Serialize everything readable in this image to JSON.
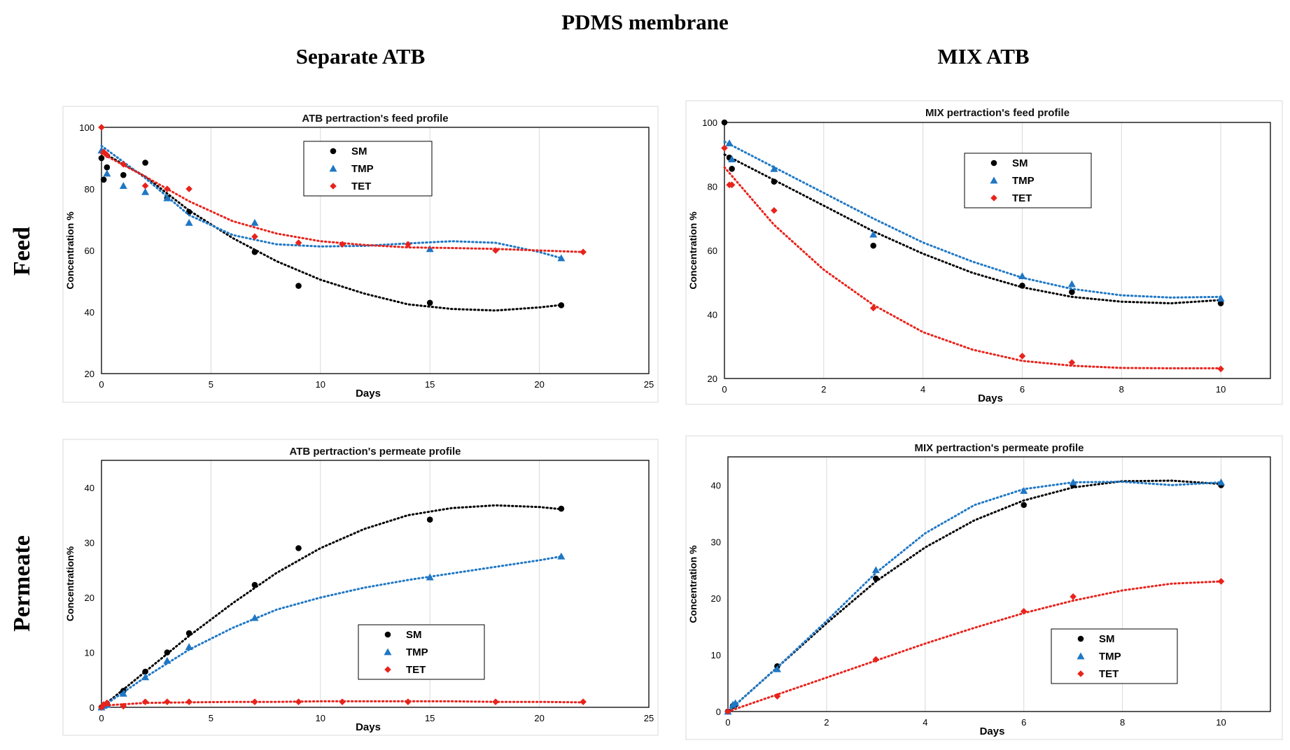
{
  "page": {
    "title": "PDMS membrane",
    "col_left": "Separate ATB",
    "col_right": "MIX ATB",
    "row_feed": "Feed",
    "row_permeate": "Permeate"
  },
  "chart_data": [
    {
      "type": "scatter",
      "title": "ATB pertraction's feed profile",
      "xlabel": "Days",
      "ylabel": "Concentration %",
      "xlim": [
        0,
        25
      ],
      "ylim": [
        20,
        100
      ],
      "xticks": [
        0,
        5,
        10,
        15,
        20,
        25
      ],
      "yticks": [
        20,
        40,
        60,
        80,
        100
      ],
      "grid": "vertical",
      "legend": "top-center",
      "series": [
        {
          "name": "SM",
          "color": "#000000",
          "marker": "circle",
          "x": [
            0,
            0.1,
            0.25,
            1,
            2,
            3,
            4,
            7,
            9,
            15,
            21
          ],
          "y": [
            90,
            83,
            87,
            84.5,
            88.5,
            77,
            72.5,
            59.5,
            48.5,
            43,
            42.2
          ],
          "trend": [
            [
              0,
              92
            ],
            [
              2,
              84
            ],
            [
              4,
              73
            ],
            [
              6,
              64
            ],
            [
              8,
              56.5
            ],
            [
              10,
              50.5
            ],
            [
              12,
              46
            ],
            [
              14,
              42.5
            ],
            [
              16,
              41
            ],
            [
              18,
              40.5
            ],
            [
              20,
              41.5
            ],
            [
              21,
              42.3
            ]
          ]
        },
        {
          "name": "TMP",
          "color": "#1f77c4",
          "marker": "triangle",
          "x": [
            0,
            0.25,
            1,
            2,
            3,
            4,
            7,
            15,
            21
          ],
          "y": [
            92.5,
            85,
            81,
            79,
            77,
            69,
            69,
            60.5,
            57.5
          ],
          "trend": [
            [
              0,
              94
            ],
            [
              2,
              83.5
            ],
            [
              4,
              71.5
            ],
            [
              6,
              65
            ],
            [
              8,
              62
            ],
            [
              10,
              61.3
            ],
            [
              12,
              61.5
            ],
            [
              14,
              62.3
            ],
            [
              16,
              63
            ],
            [
              18,
              62.5
            ],
            [
              20,
              59.5
            ],
            [
              21,
              57.5
            ]
          ]
        },
        {
          "name": "TET",
          "color": "#e8231c",
          "marker": "diamond",
          "x": [
            0,
            0.1,
            0.25,
            1,
            2,
            3,
            4,
            7,
            9,
            11,
            14,
            18,
            22
          ],
          "y": [
            100,
            92,
            91,
            88,
            81,
            80,
            80,
            64.5,
            62.5,
            62,
            62,
            60,
            59.5
          ],
          "trend": [
            [
              0,
              91.5
            ],
            [
              2,
              84
            ],
            [
              4,
              76
            ],
            [
              6,
              69.5
            ],
            [
              8,
              65.5
            ],
            [
              10,
              63
            ],
            [
              12,
              61.8
            ],
            [
              14,
              61
            ],
            [
              16,
              60.8
            ],
            [
              18,
              60.5
            ],
            [
              20,
              60
            ],
            [
              22,
              59.5
            ]
          ]
        }
      ]
    },
    {
      "type": "scatter",
      "title": "MIX pertraction's feed profile",
      "xlabel": "Days",
      "ylabel": "Concentration %",
      "xlim": [
        0,
        11
      ],
      "ylim": [
        20,
        100
      ],
      "xticks": [
        0,
        2,
        4,
        6,
        8,
        10
      ],
      "yticks": [
        20,
        40,
        60,
        80,
        100
      ],
      "grid": "vertical",
      "legend": "top-center",
      "series": [
        {
          "name": "SM",
          "color": "#000000",
          "marker": "circle",
          "x": [
            0,
            0.1,
            0.15,
            1,
            3,
            6,
            7,
            10
          ],
          "y": [
            100,
            89,
            85.5,
            81.5,
            61.5,
            49,
            47,
            43.5
          ],
          "trend": [
            [
              0,
              90
            ],
            [
              1,
              82
            ],
            [
              2,
              74
            ],
            [
              3,
              66
            ],
            [
              4,
              59
            ],
            [
              5,
              53
            ],
            [
              6,
              48.5
            ],
            [
              7,
              45.5
            ],
            [
              8,
              44
            ],
            [
              9,
              43.5
            ],
            [
              10,
              44.5
            ]
          ]
        },
        {
          "name": "TMP",
          "color": "#1f77c4",
          "marker": "triangle",
          "x": [
            0.1,
            0.15,
            1,
            3,
            6,
            7,
            10
          ],
          "y": [
            93.5,
            88.5,
            85.5,
            65,
            52,
            49.5,
            45
          ],
          "trend": [
            [
              0,
              94
            ],
            [
              1,
              86
            ],
            [
              2,
              78
            ],
            [
              3,
              70
            ],
            [
              4,
              62.5
            ],
            [
              5,
              56.5
            ],
            [
              6,
              51.5
            ],
            [
              7,
              48
            ],
            [
              8,
              46
            ],
            [
              9,
              45.3
            ],
            [
              10,
              45.5
            ]
          ]
        },
        {
          "name": "TET",
          "color": "#e8231c",
          "marker": "diamond",
          "x": [
            0,
            0.1,
            0.15,
            1,
            3,
            6,
            7,
            10
          ],
          "y": [
            92,
            80.5,
            80.5,
            72.5,
            42,
            27,
            25,
            23
          ],
          "trend": [
            [
              0,
              86
            ],
            [
              1,
              68
            ],
            [
              2,
              54
            ],
            [
              3,
              43
            ],
            [
              4,
              34.5
            ],
            [
              5,
              29
            ],
            [
              6,
              25.5
            ],
            [
              7,
              24
            ],
            [
              8,
              23.3
            ],
            [
              9,
              23.2
            ],
            [
              10,
              23.2
            ]
          ]
        }
      ]
    },
    {
      "type": "scatter",
      "title": "ATB pertraction's permeate profile",
      "xlabel": "Days",
      "ylabel": "Concentration%",
      "xlim": [
        0,
        25
      ],
      "ylim": [
        0,
        45
      ],
      "xticks": [
        0,
        5,
        10,
        15,
        20,
        25
      ],
      "yticks": [
        0,
        10,
        20,
        30,
        40
      ],
      "grid": "vertical",
      "legend": "bottom-center",
      "series": [
        {
          "name": "SM",
          "color": "#000000",
          "marker": "circle",
          "x": [
            0,
            0.1,
            0.25,
            1,
            2,
            3,
            4,
            7,
            9,
            15,
            21
          ],
          "y": [
            0,
            0.3,
            0.6,
            3,
            6.5,
            10,
            13.5,
            22.3,
            29,
            34.2,
            36.2
          ],
          "trend": [
            [
              0,
              0
            ],
            [
              2,
              6.5
            ],
            [
              4,
              13
            ],
            [
              6,
              19
            ],
            [
              8,
              24.5
            ],
            [
              10,
              29
            ],
            [
              12,
              32.5
            ],
            [
              14,
              35
            ],
            [
              16,
              36.3
            ],
            [
              18,
              36.8
            ],
            [
              20,
              36.5
            ],
            [
              21,
              36.1
            ]
          ]
        },
        {
          "name": "TMP",
          "color": "#1f77c4",
          "marker": "triangle",
          "x": [
            0,
            0.1,
            0.25,
            1,
            2,
            3,
            4,
            7,
            15,
            21
          ],
          "y": [
            0,
            0.3,
            0.5,
            2.5,
            5.5,
            8.5,
            11,
            16.3,
            23.7,
            27.5
          ],
          "trend": [
            [
              0,
              0
            ],
            [
              2,
              5.5
            ],
            [
              4,
              10.5
            ],
            [
              6,
              14.5
            ],
            [
              8,
              17.8
            ],
            [
              10,
              20
            ],
            [
              12,
              21.8
            ],
            [
              14,
              23.2
            ],
            [
              16,
              24.4
            ],
            [
              18,
              25.6
            ],
            [
              20,
              26.8
            ],
            [
              21,
              27.5
            ]
          ]
        },
        {
          "name": "TET",
          "color": "#e8231c",
          "marker": "diamond",
          "x": [
            0,
            0.1,
            0.25,
            1,
            2,
            3,
            4,
            7,
            9,
            11,
            14,
            18,
            22
          ],
          "y": [
            0,
            0.5,
            0.8,
            0.2,
            1,
            1,
            1,
            1,
            1,
            1,
            1,
            1,
            1
          ],
          "trend": [
            [
              0,
              0.3
            ],
            [
              2,
              0.8
            ],
            [
              4,
              0.9
            ],
            [
              6,
              1
            ],
            [
              8,
              1
            ],
            [
              10,
              1.1
            ],
            [
              12,
              1.1
            ],
            [
              14,
              1.1
            ],
            [
              16,
              1.1
            ],
            [
              18,
              1
            ],
            [
              20,
              1
            ],
            [
              22,
              0.9
            ]
          ]
        }
      ]
    },
    {
      "type": "scatter",
      "title": "MIX pertraction's permeate profile",
      "xlabel": "Days",
      "ylabel": "Concentration %",
      "xlim": [
        0,
        11
      ],
      "ylim": [
        0,
        45
      ],
      "xticks": [
        0,
        2,
        4,
        6,
        8,
        10
      ],
      "yticks": [
        0,
        10,
        20,
        30,
        40
      ],
      "grid": "vertical",
      "legend": "bottom-right",
      "series": [
        {
          "name": "SM",
          "color": "#000000",
          "marker": "circle",
          "x": [
            0,
            0.1,
            0.15,
            1,
            3,
            6,
            7,
            10
          ],
          "y": [
            0,
            1,
            1.2,
            8,
            23.5,
            36.5,
            40,
            40
          ],
          "trend": [
            [
              0,
              0
            ],
            [
              1,
              7.8
            ],
            [
              2,
              15.6
            ],
            [
              3,
              23
            ],
            [
              4,
              29
            ],
            [
              5,
              33.8
            ],
            [
              6,
              37.3
            ],
            [
              7,
              39.6
            ],
            [
              8,
              40.7
            ],
            [
              9,
              40.8
            ],
            [
              10,
              40.2
            ]
          ]
        },
        {
          "name": "TMP",
          "color": "#1f77c4",
          "marker": "triangle",
          "x": [
            0,
            0.1,
            0.15,
            1,
            3,
            6,
            7,
            10
          ],
          "y": [
            0,
            1.2,
            1.5,
            7.5,
            25,
            39,
            40.5,
            40.5
          ],
          "trend": [
            [
              0,
              0
            ],
            [
              1,
              7.8
            ],
            [
              2,
              16
            ],
            [
              3,
              24.5
            ],
            [
              4,
              31.5
            ],
            [
              5,
              36.5
            ],
            [
              6,
              39.3
            ],
            [
              7,
              40.5
            ],
            [
              8,
              40.6
            ],
            [
              9,
              40
            ],
            [
              10,
              40.5
            ]
          ]
        },
        {
          "name": "TET",
          "color": "#e8231c",
          "marker": "diamond",
          "x": [
            0,
            1,
            3,
            6,
            7,
            10
          ],
          "y": [
            0,
            2.7,
            9.2,
            17.7,
            20.3,
            23
          ],
          "trend": [
            [
              0,
              0
            ],
            [
              1,
              3
            ],
            [
              2,
              6
            ],
            [
              3,
              9
            ],
            [
              4,
              12
            ],
            [
              5,
              14.8
            ],
            [
              6,
              17.4
            ],
            [
              7,
              19.6
            ],
            [
              8,
              21.4
            ],
            [
              9,
              22.6
            ],
            [
              10,
              23
            ]
          ]
        }
      ]
    }
  ]
}
